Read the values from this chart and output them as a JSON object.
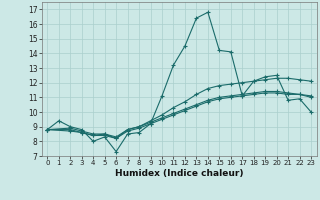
{
  "xlabel": "Humidex (Indice chaleur)",
  "ylabel": "",
  "xlim": [
    -0.5,
    23.5
  ],
  "ylim": [
    7,
    17.5
  ],
  "yticks": [
    7,
    8,
    9,
    10,
    11,
    12,
    13,
    14,
    15,
    16,
    17
  ],
  "xticks": [
    0,
    1,
    2,
    3,
    4,
    5,
    6,
    7,
    8,
    9,
    10,
    11,
    12,
    13,
    14,
    15,
    16,
    17,
    18,
    19,
    20,
    21,
    22,
    23
  ],
  "bg_color": "#cce8e6",
  "line_color": "#1a6b6a",
  "grid_color": "#aacfcd",
  "line1_x": [
    0,
    1,
    2,
    3,
    4,
    5,
    6,
    7,
    8,
    9,
    10,
    11,
    12,
    13,
    14,
    15,
    16,
    17,
    18,
    19,
    20,
    21,
    22,
    23
  ],
  "line1_y": [
    8.8,
    9.4,
    9.0,
    8.8,
    8.0,
    8.3,
    7.3,
    8.5,
    8.6,
    9.2,
    11.1,
    13.2,
    14.5,
    16.4,
    16.8,
    14.2,
    14.1,
    11.1,
    12.1,
    12.4,
    12.5,
    10.8,
    10.9,
    10.0
  ],
  "line2_x": [
    0,
    2,
    3,
    4,
    5,
    6,
    7,
    8,
    9,
    10,
    11,
    12,
    13,
    14,
    15,
    16,
    17,
    18,
    19,
    20,
    21,
    22,
    23
  ],
  "line2_y": [
    8.8,
    8.9,
    8.7,
    8.5,
    8.5,
    8.2,
    8.8,
    9.0,
    9.4,
    9.8,
    10.3,
    10.7,
    11.2,
    11.6,
    11.8,
    11.9,
    12.0,
    12.1,
    12.2,
    12.3,
    12.3,
    12.2,
    12.1
  ],
  "line3_x": [
    0,
    2,
    3,
    4,
    5,
    6,
    7,
    8,
    9,
    10,
    11,
    12,
    13,
    14,
    15,
    16,
    17,
    18,
    19,
    20,
    21,
    22,
    23
  ],
  "line3_y": [
    8.8,
    8.8,
    8.6,
    8.4,
    8.4,
    8.2,
    8.7,
    8.9,
    9.2,
    9.5,
    9.8,
    10.1,
    10.4,
    10.7,
    10.9,
    11.0,
    11.1,
    11.2,
    11.3,
    11.3,
    11.2,
    11.2,
    11.1
  ],
  "line4_x": [
    0,
    2,
    3,
    4,
    5,
    6,
    7,
    8,
    9,
    10,
    11,
    12,
    13,
    14,
    15,
    16,
    17,
    18,
    19,
    20,
    21,
    22,
    23
  ],
  "line4_y": [
    8.8,
    8.7,
    8.6,
    8.4,
    8.5,
    8.3,
    8.8,
    9.0,
    9.3,
    9.6,
    9.9,
    10.2,
    10.5,
    10.8,
    11.0,
    11.1,
    11.2,
    11.3,
    11.4,
    11.4,
    11.3,
    11.2,
    11.0
  ]
}
